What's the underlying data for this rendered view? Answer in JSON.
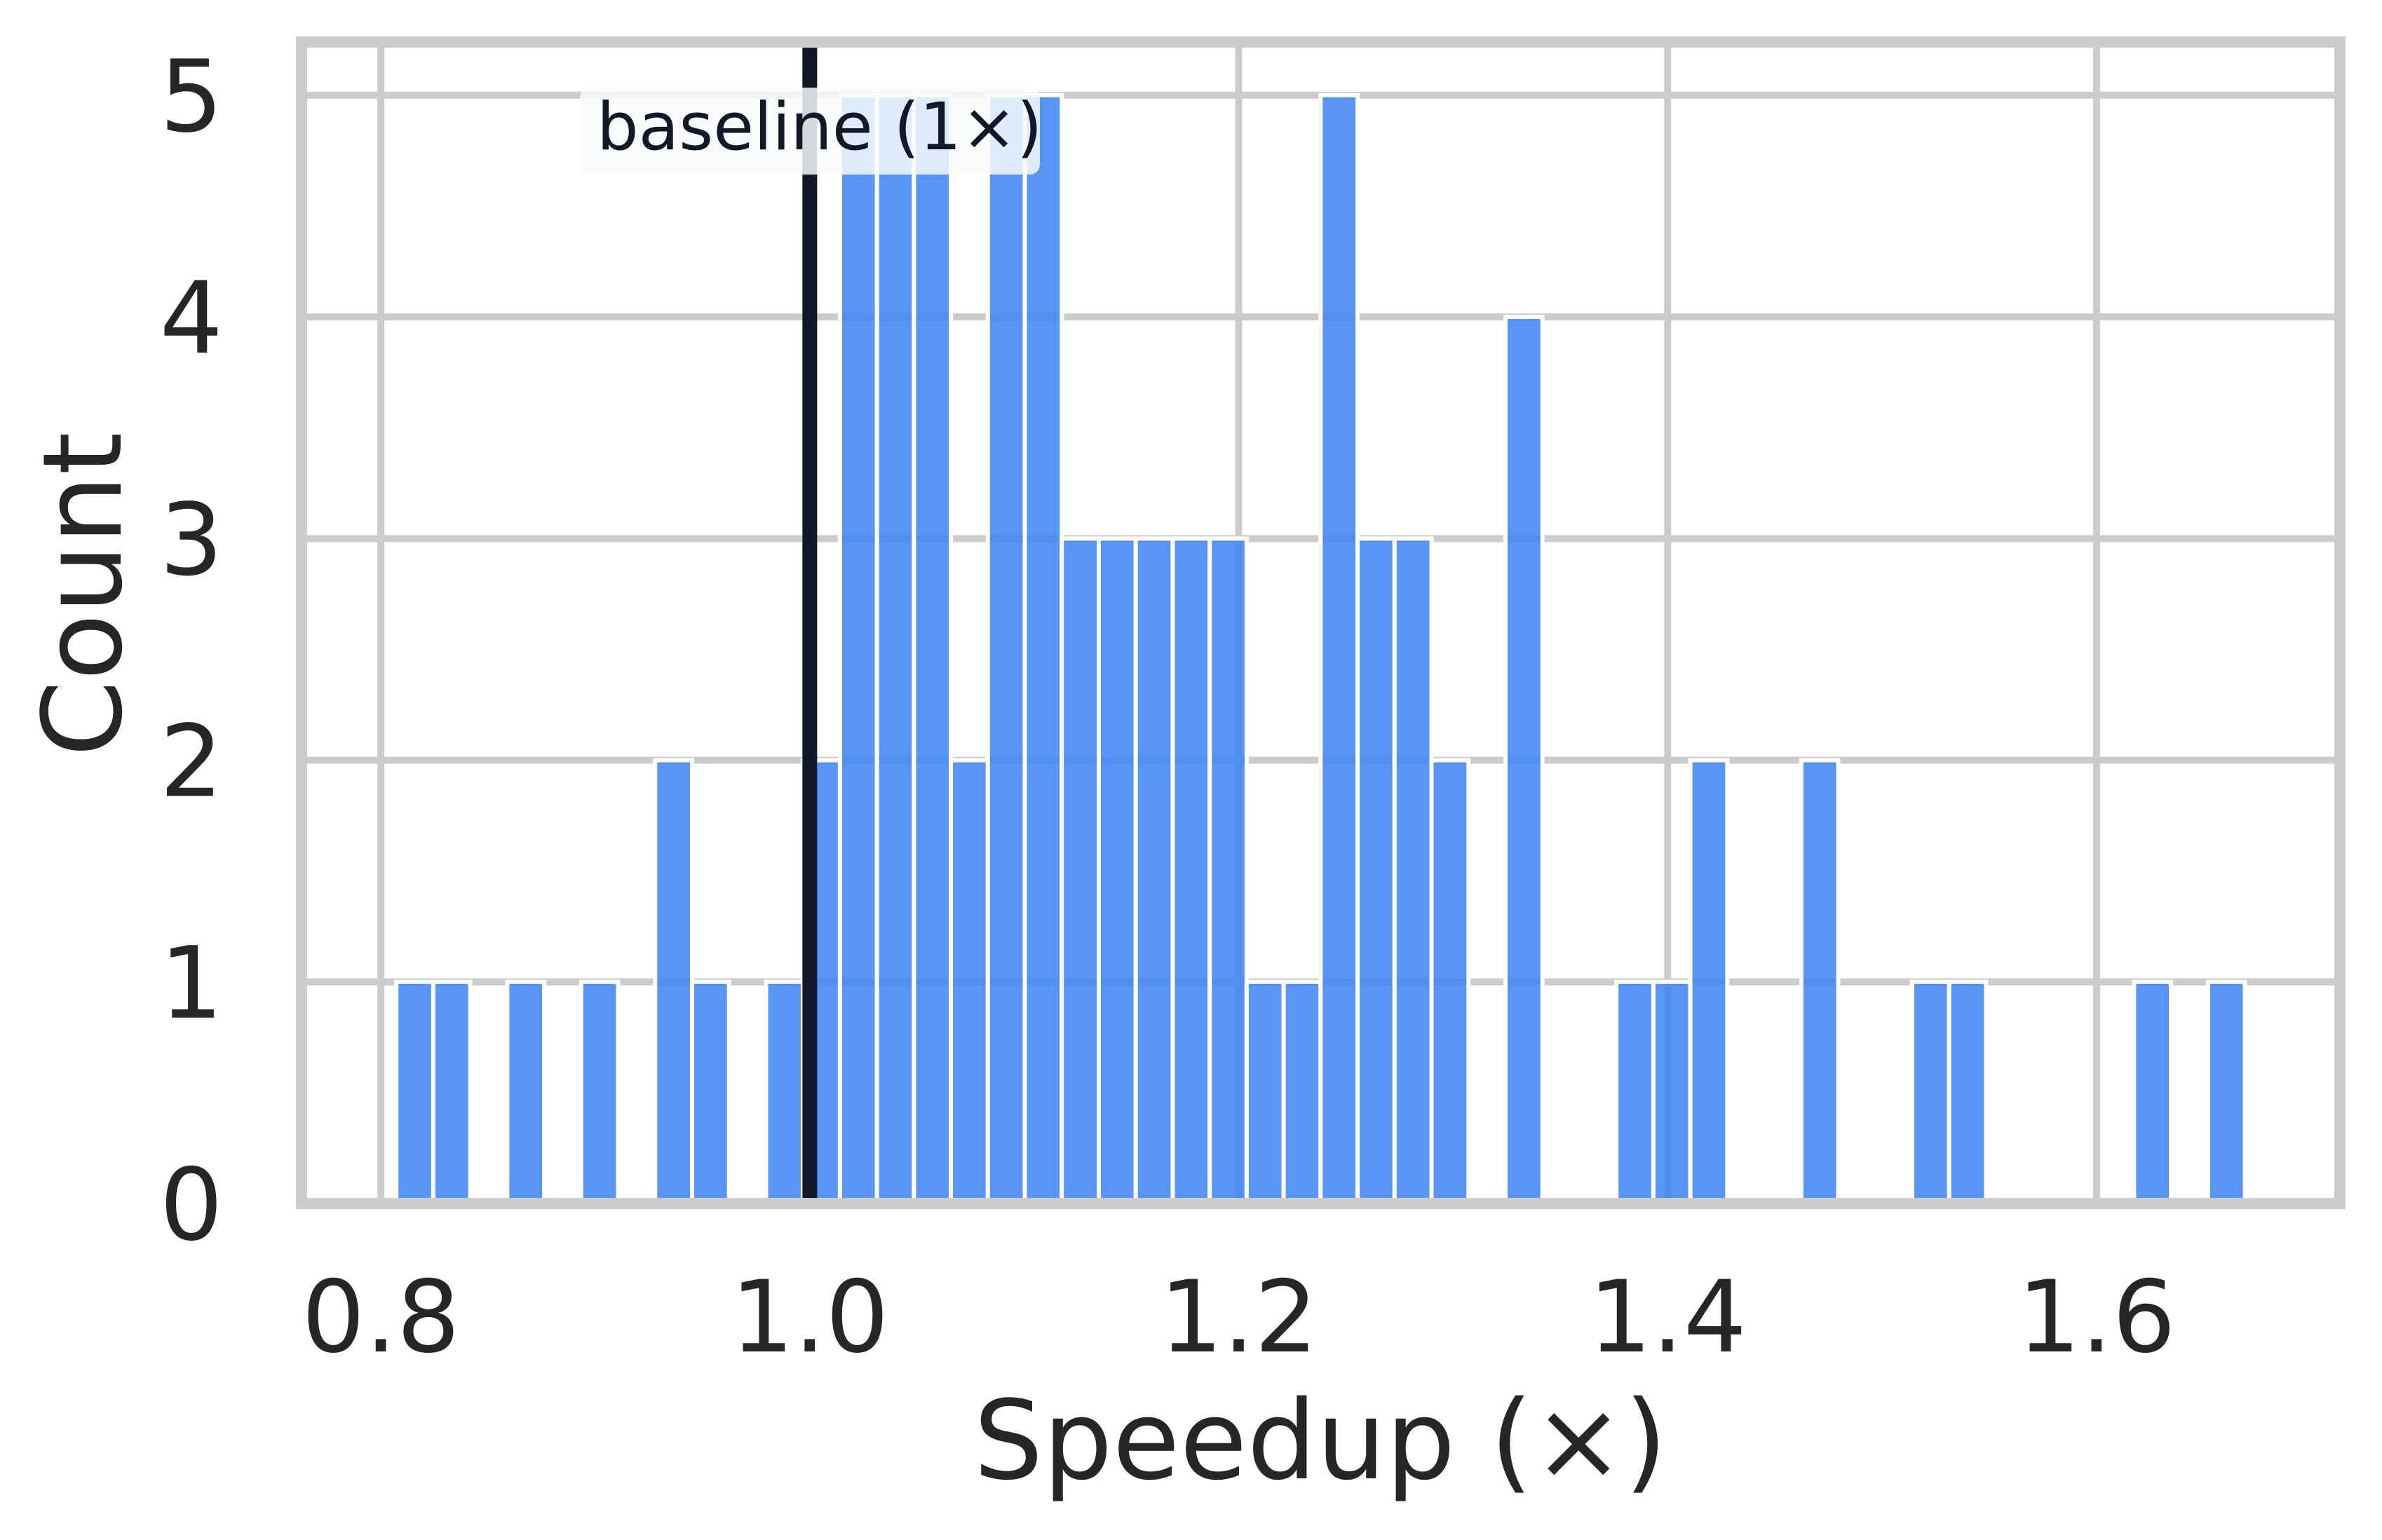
{
  "chart_data": {
    "type": "bar",
    "subtype": "histogram",
    "title": "",
    "xlabel": "Speedup (×)",
    "ylabel": "Count",
    "xlim": [
      0.763,
      1.7135
    ],
    "ylim": [
      0,
      5.24
    ],
    "xticks": [
      0.8,
      1.0,
      1.2,
      1.4,
      1.6
    ],
    "xtick_labels": [
      "0.8",
      "1.0",
      "1.2",
      "1.4",
      "1.6"
    ],
    "yticks": [
      0,
      1,
      2,
      3,
      4,
      5
    ],
    "ytick_labels": [
      "0",
      "1",
      "2",
      "3",
      "4",
      "5"
    ],
    "grid": true,
    "legend": null,
    "bin_start": 0.8072,
    "bin_width": 0.01724,
    "bin_count": 50,
    "counts": [
      1,
      1,
      0,
      1,
      0,
      1,
      0,
      2,
      1,
      0,
      1,
      2,
      5,
      5,
      5,
      2,
      5,
      5,
      3,
      3,
      3,
      3,
      3,
      1,
      1,
      5,
      3,
      3,
      2,
      0,
      4,
      0,
      0,
      1,
      1,
      2,
      0,
      0,
      2,
      0,
      0,
      1,
      1,
      0,
      0,
      0,
      0,
      1,
      0,
      1
    ],
    "total_count": 81,
    "bar_color": "#3b82f6",
    "bar_alpha": 0.85,
    "reference_line": {
      "x": 1.0,
      "color": "#111827",
      "label": "baseline (1×)"
    },
    "annotations": [
      {
        "text": "baseline (1×)",
        "x": 1.0,
        "y": 4.85,
        "box": true
      }
    ]
  },
  "axes": {
    "xlabel": "Speedup (×)",
    "ylabel": "Count",
    "annotation": "baseline (1×)"
  },
  "colors": {
    "bar": "#3b82f6",
    "baseline": "#111827",
    "grid": "#cccccc",
    "spine": "#cccccc",
    "text": "#262626",
    "annotation_box": "#f8fafc"
  }
}
